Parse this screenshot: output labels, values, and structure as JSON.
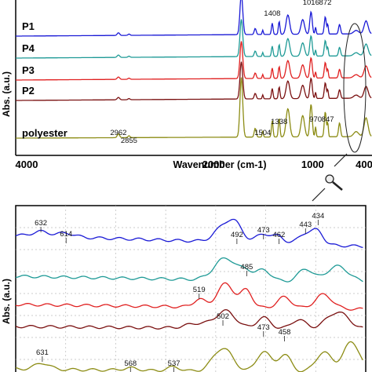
{
  "chart_data": [
    {
      "type": "line",
      "title": "",
      "xlabel": "Wavenumber (cm-1)",
      "ylabel": "Abs. (a.u.)",
      "xlim": [
        4000,
        400
      ],
      "x_reversed": true,
      "x_ticks": [
        "4000",
        "2000",
        "1000",
        "400"
      ],
      "grid": false,
      "series": [
        {
          "name": "P1",
          "color": "#1a1ad6"
        },
        {
          "name": "P4",
          "color": "#1e9a96"
        },
        {
          "name": "P3",
          "color": "#e02020"
        },
        {
          "name": "P2",
          "color": "#7a1010"
        },
        {
          "name": "polyester",
          "color": "#8c8c14"
        }
      ],
      "annotations": [
        "1408",
        "1016",
        "872",
        "2962",
        "2855",
        "1504",
        "1338",
        "970",
        "847"
      ]
    },
    {
      "type": "line",
      "title": "",
      "xlabel": "",
      "ylabel": "Abs. (a.u.)",
      "xlim": [
        650,
        400
      ],
      "x_reversed": true,
      "grid": true,
      "series": [
        {
          "name": "P1",
          "color": "#1a1ad6"
        },
        {
          "name": "P4",
          "color": "#1e9a96"
        },
        {
          "name": "P3",
          "color": "#e02020"
        },
        {
          "name": "P2",
          "color": "#7a1010"
        },
        {
          "name": "polyester",
          "color": "#8c8c14"
        }
      ],
      "annotations": [
        "632",
        "614",
        "492",
        "473",
        "462",
        "443",
        "434",
        "485",
        "519",
        "502",
        "473",
        "458",
        "631",
        "568",
        "537"
      ]
    }
  ]
}
